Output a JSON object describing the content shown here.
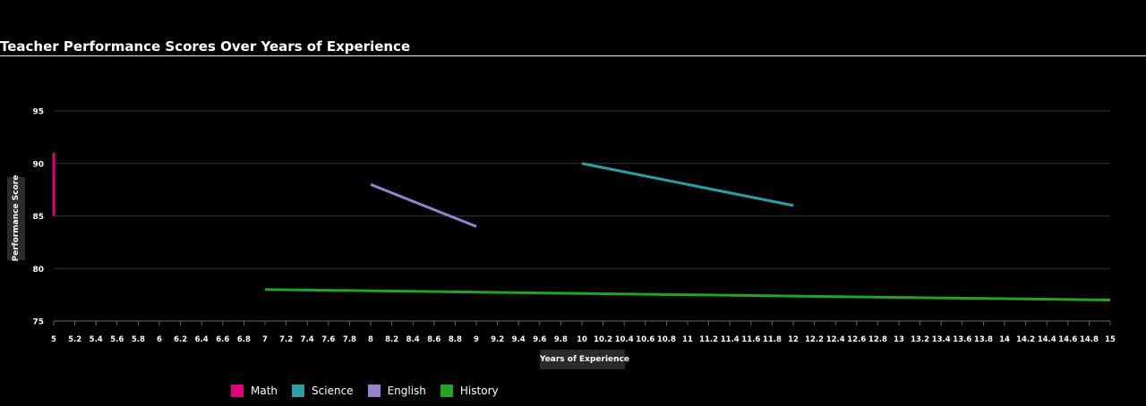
{
  "colors": {
    "background": "#000000",
    "grid": "#333333",
    "axis": "#666666",
    "text": "#ffffff"
  },
  "chart_data": {
    "type": "line",
    "title": "Teacher Performance Scores Over Years of Experience",
    "xlabel": "Years of Experience",
    "ylabel": "Performance Score",
    "xlim": [
      5,
      15
    ],
    "ylim": [
      75,
      95
    ],
    "xticks": [
      5,
      5.2,
      5.4,
      5.6,
      5.8,
      6,
      6.2,
      6.4,
      6.6,
      6.8,
      7,
      7.2,
      7.4,
      7.6,
      7.8,
      8,
      8.2,
      8.4,
      8.6,
      8.8,
      9,
      9.2,
      9.4,
      9.6,
      9.8,
      10,
      10.2,
      10.4,
      10.6,
      10.8,
      11,
      11.2,
      11.4,
      11.6,
      11.8,
      12,
      12.2,
      12.4,
      12.6,
      12.8,
      13,
      13.2,
      13.4,
      13.6,
      13.8,
      14,
      14.2,
      14.4,
      14.6,
      14.8,
      15
    ],
    "yticks": [
      75,
      80,
      85,
      90,
      95
    ],
    "grid": true,
    "legend_position": "bottom-left",
    "series": [
      {
        "name": "Math",
        "color": "#e4007c",
        "points": [
          [
            5,
            91
          ],
          [
            5,
            85
          ]
        ]
      },
      {
        "name": "Science",
        "color": "#2aa0a4",
        "points": [
          [
            10,
            90
          ],
          [
            12,
            86
          ]
        ]
      },
      {
        "name": "English",
        "color": "#9b7fd0",
        "points": [
          [
            8,
            88
          ],
          [
            9,
            84
          ]
        ]
      },
      {
        "name": "History",
        "color": "#22a522",
        "points": [
          [
            7,
            78
          ],
          [
            15,
            77
          ]
        ]
      }
    ]
  }
}
